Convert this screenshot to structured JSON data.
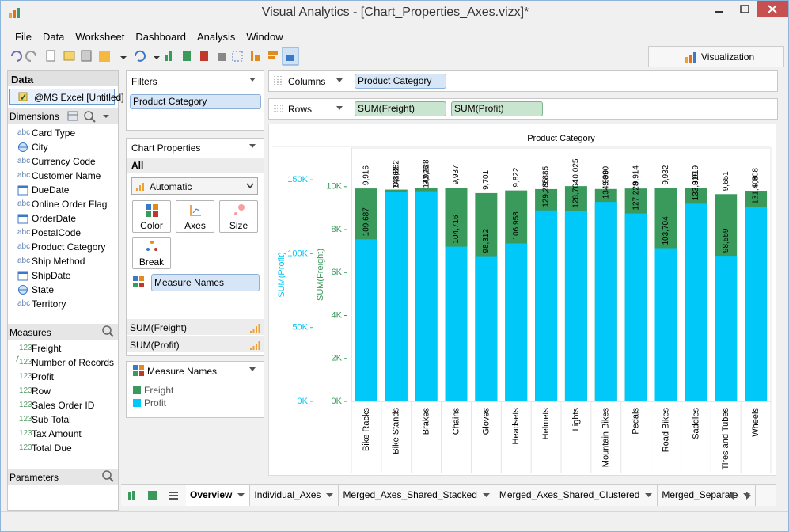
{
  "window": {
    "title": "Visual Analytics - [Chart_Properties_Axes.vizx]*"
  },
  "menu": [
    "File",
    "Data",
    "Worksheet",
    "Dashboard",
    "Analysis",
    "Window"
  ],
  "toolbar": {
    "tab": "Visualization"
  },
  "data_panel": {
    "title": "Data",
    "source": "@MS Excel [Untitled]",
    "dimensions_title": "Dimensions",
    "text_icon": "abc",
    "measure_icon": "123",
    "dimensions": [
      {
        "name": "Card Type",
        "kind": "text"
      },
      {
        "name": "City",
        "kind": "geo"
      },
      {
        "name": "Currency Code",
        "kind": "text"
      },
      {
        "name": "Customer Name",
        "kind": "text"
      },
      {
        "name": "DueDate",
        "kind": "date"
      },
      {
        "name": "Online Order Flag",
        "kind": "text"
      },
      {
        "name": "OrderDate",
        "kind": "date"
      },
      {
        "name": "PostalCode",
        "kind": "text"
      },
      {
        "name": "Product Category",
        "kind": "text"
      },
      {
        "name": "Ship Method",
        "kind": "text"
      },
      {
        "name": "ShipDate",
        "kind": "date"
      },
      {
        "name": "State",
        "kind": "geo"
      },
      {
        "name": "Territory",
        "kind": "text"
      }
    ],
    "measures_title": "Measures",
    "measures": [
      {
        "name": "Freight",
        "kind": "number"
      },
      {
        "name": "Number of Records",
        "kind": "calc"
      },
      {
        "name": "Profit",
        "kind": "number"
      },
      {
        "name": "Row",
        "kind": "number"
      },
      {
        "name": "Sales Order ID",
        "kind": "number"
      },
      {
        "name": "Sub Total",
        "kind": "number"
      },
      {
        "name": "Tax Amount",
        "kind": "number"
      },
      {
        "name": "Total Due",
        "kind": "number"
      }
    ],
    "parameters_title": "Parameters"
  },
  "filters": {
    "title": "Filters",
    "items": [
      "Product Category"
    ]
  },
  "chart_properties": {
    "title": "Chart Properties",
    "scope": "All",
    "mark_type": "Automatic",
    "buttons": [
      "Color",
      "Axes",
      "Size",
      "Break"
    ],
    "color_field": "Measure Names",
    "measures": [
      "SUM(Freight)",
      "SUM(Profit)"
    ]
  },
  "legend": {
    "title": "Measure Names"
  },
  "shelves": {
    "columns_label": "Columns",
    "columns": [
      "Product Category"
    ],
    "rows_label": "Rows",
    "rows": [
      "SUM(Freight)",
      "SUM(Profit)"
    ]
  },
  "tabs": {
    "items": [
      "Overview",
      "Individual_Axes",
      "Merged_Axes_Shared_Stacked",
      "Merged_Axes_Shared_Clustered",
      "Merged_Separate"
    ],
    "active": 0
  },
  "chart_data": {
    "type": "bar",
    "title": "Product Category",
    "categories": [
      "Bike Racks",
      "Bike Stands",
      "Brakes",
      "Chains",
      "Gloves",
      "Headsets",
      "Helmets",
      "Lights",
      "Mountain Bikes",
      "Pedals",
      "Road Bikes",
      "Saddles",
      "Tires and Tubes",
      "Wheels"
    ],
    "ylabel": "SUM(Freight)",
    "y2label": "SUM(Profit)",
    "series": [
      {
        "name": "Freight",
        "color": "#3a9a5c",
        "axis": "y",
        "values": [
          9916,
          9862,
          9928,
          9937,
          9701,
          9822,
          9885,
          10025,
          9890,
          9914,
          9932,
          9919,
          9651,
          9808
        ],
        "value_labels": [
          "9,916",
          "9,862",
          "9,928",
          "9,937",
          "9,701",
          "9,822",
          "9,885",
          "10,025",
          "9,890",
          "9,914",
          "9,932",
          "9,919",
          "9,651",
          "9,808"
        ]
      },
      {
        "name": "Profit",
        "color": "#00c8f8",
        "axis": "y2",
        "values": [
          109687,
          141862,
          142228,
          104716,
          98312,
          106958,
          129285,
          128764,
          134990,
          127228,
          103704,
          133819,
          98559,
          131408
        ],
        "value_labels": [
          "109,687",
          "141,862",
          "142,228",
          "104,716",
          "98,312",
          "106,958",
          "129,285",
          "128,764",
          "134,990",
          "127,228",
          "103,704",
          "133,819",
          "98,559",
          "131,408"
        ]
      }
    ],
    "ylim": [
      0,
      11800
    ],
    "yticks": [
      {
        "value": 0,
        "label": "0K"
      },
      {
        "value": 2000,
        "label": "2K"
      },
      {
        "value": 4000,
        "label": "4K"
      },
      {
        "value": 6000,
        "label": "6K"
      },
      {
        "value": 8000,
        "label": "8K"
      },
      {
        "value": 10000,
        "label": "10K"
      }
    ],
    "y2lim": [
      0,
      171500
    ],
    "y2ticks": [
      {
        "value": 0,
        "label": "0K"
      },
      {
        "value": 50000,
        "label": "50K"
      },
      {
        "value": 100000,
        "label": "100K"
      },
      {
        "value": 150000,
        "label": "150K"
      }
    ]
  }
}
